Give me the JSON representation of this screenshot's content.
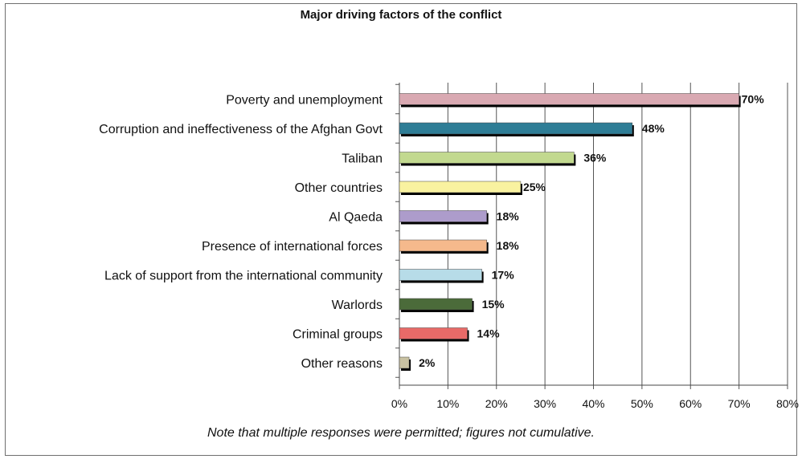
{
  "chart_data": {
    "type": "bar",
    "orientation": "horizontal",
    "title": "Major driving factors of the conflict",
    "note": "Note that multiple responses were permitted; figures not cumulative.",
    "categories": [
      "Poverty and unemployment",
      "Corruption and ineffectiveness of the Afghan Govt",
      "Taliban",
      "Other countries",
      "Al Qaeda",
      "Presence of international forces",
      "Lack of support from the international community",
      "Warlords",
      "Criminal groups",
      "Other reasons"
    ],
    "values": [
      70,
      48,
      36,
      25,
      18,
      18,
      17,
      15,
      14,
      2
    ],
    "value_labels": [
      "70%",
      "48%",
      "36%",
      "25%",
      "18%",
      "18%",
      "17%",
      "15%",
      "14%",
      "2%"
    ],
    "colors": [
      "#d9a9b2",
      "#2e7d96",
      "#c2d98f",
      "#f9f2a0",
      "#ad9ccb",
      "#f5b98c",
      "#b7dce8",
      "#4b6b3a",
      "#e86a68",
      "#c9c2a2"
    ],
    "xlim": [
      0,
      80
    ],
    "xticks": [
      "0%",
      "10%",
      "20%",
      "30%",
      "40%",
      "50%",
      "60%",
      "70%",
      "80%"
    ],
    "grid": true,
    "legend": "none"
  }
}
